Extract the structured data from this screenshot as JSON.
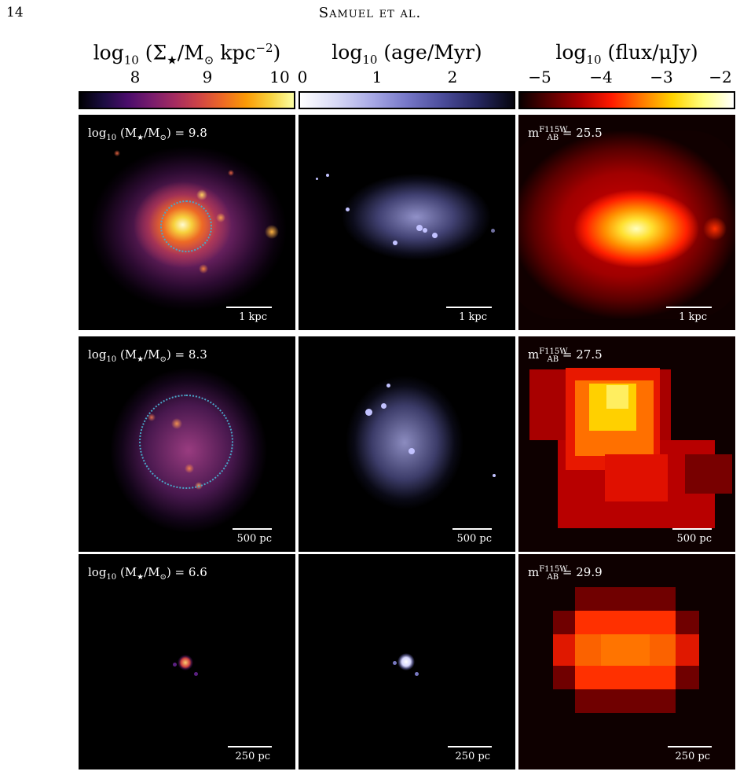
{
  "header": {
    "page_number": "14",
    "running_title": "Samuel et al."
  },
  "colorbars": [
    {
      "title_lead": "log",
      "title_sub": "10",
      "title_rest": " (Σ",
      "title_sub2": "★",
      "title_rest2": "/M",
      "title_sub3": "⊙",
      "title_rest3": " kpc",
      "title_sup": "−2",
      "title_end": ")",
      "ticks": [
        "8",
        "9",
        "10"
      ],
      "colormap": "inferno"
    },
    {
      "title_lead": "log",
      "title_sub": "10",
      "title_rest": " (age/Myr)",
      "ticks": [
        "0",
        "1",
        "2"
      ],
      "colormap": "white-to-purple-to-black"
    },
    {
      "title_lead": "log",
      "title_sub": "10",
      "title_rest": " (flux/μJy)",
      "ticks": [
        "−5",
        "−4",
        "−3",
        "−2"
      ],
      "colormap": "hot"
    }
  ],
  "rows": [
    {
      "mass_label_lead": "log",
      "mass_label_sub": "10",
      "mass_label_mid": " (M",
      "mass_label_sub2": "★",
      "mass_label_end": "/M",
      "mass_label_sub3": "⊙",
      "mass_label_close": ") = 9.8",
      "mag_label_lead": "m",
      "mag_label_sup": "F115W",
      "mag_label_sub": "AB",
      "mag_label_end": " = 25.5",
      "scale": "1 kpc"
    },
    {
      "mass_label_lead": "log",
      "mass_label_sub": "10",
      "mass_label_mid": " (M",
      "mass_label_sub2": "★",
      "mass_label_end": "/M",
      "mass_label_sub3": "⊙",
      "mass_label_close": ") = 8.3",
      "mag_label_lead": "m",
      "mag_label_sup": "F115W",
      "mag_label_sub": "AB",
      "mag_label_end": " = 27.5",
      "scale": "500 pc"
    },
    {
      "mass_label_lead": "log",
      "mass_label_sub": "10",
      "mass_label_mid": " (M",
      "mass_label_sub2": "★",
      "mass_label_end": "/M",
      "mass_label_sub3": "⊙",
      "mass_label_close": ") = 6.6",
      "mag_label_lead": "m",
      "mag_label_sup": "F115W",
      "mag_label_sub": "AB",
      "mag_label_end": " = 29.9",
      "scale": "250 pc"
    }
  ],
  "colors": {
    "ring": "#4aa6c8",
    "age_points": "#c2c2ff",
    "panel_bg": "#000000"
  }
}
